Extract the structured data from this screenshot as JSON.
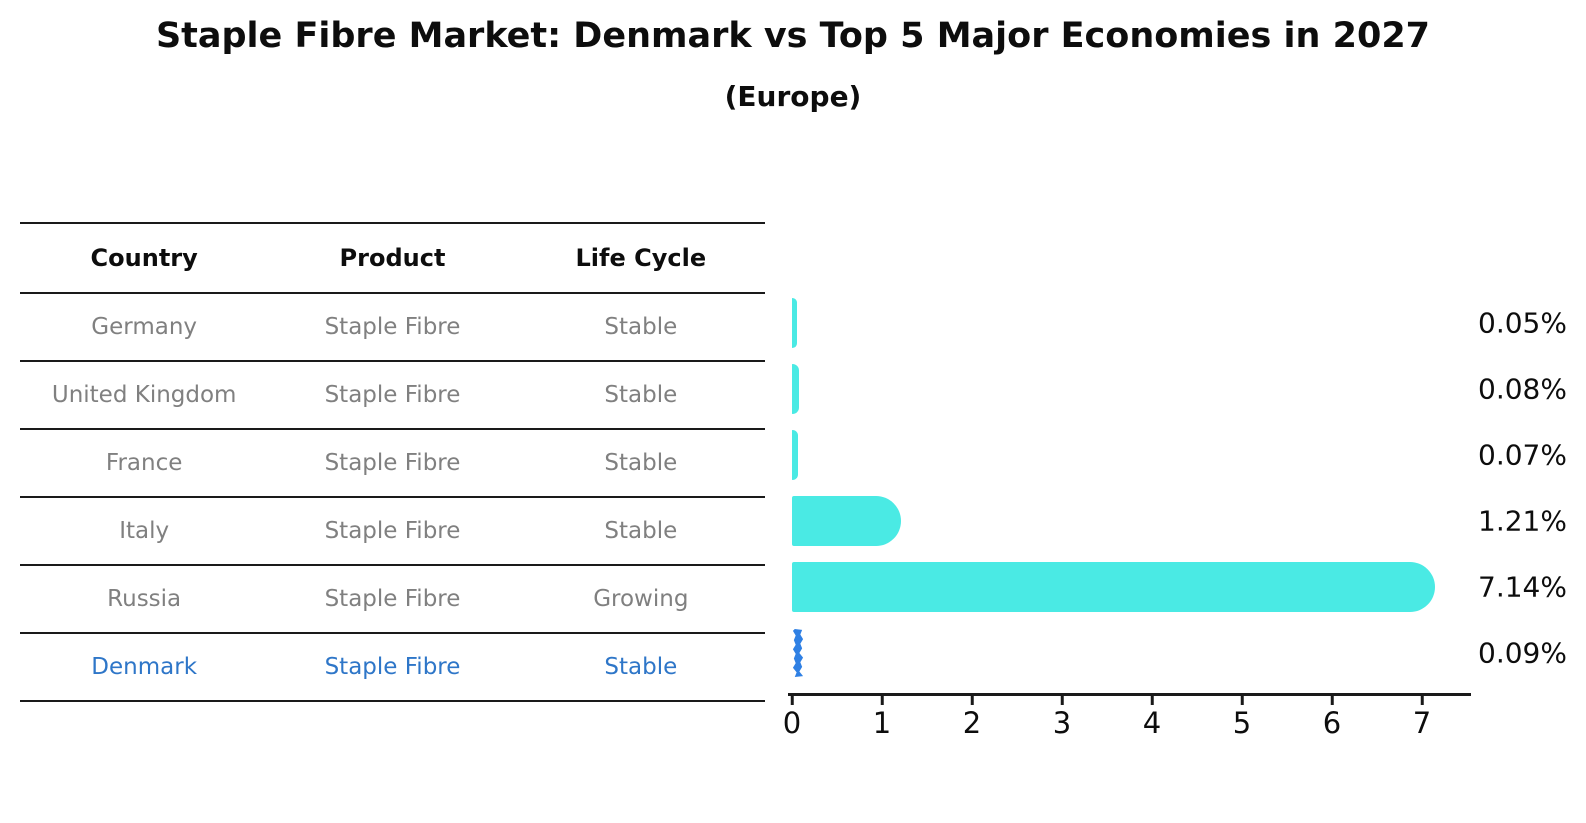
{
  "header": {
    "title": "Staple Fibre Market: Denmark vs Top 5 Major Economies in 2027",
    "subtitle": "(Europe)"
  },
  "table": {
    "headers": [
      "Country",
      "Product",
      "Life Cycle"
    ],
    "rows": [
      {
        "country": "Germany",
        "product": "Staple Fibre",
        "life_cycle": "Stable"
      },
      {
        "country": "United Kingdom",
        "product": "Staple Fibre",
        "life_cycle": "Stable"
      },
      {
        "country": "France",
        "product": "Staple Fibre",
        "life_cycle": "Stable"
      },
      {
        "country": "Italy",
        "product": "Staple Fibre",
        "life_cycle": "Stable"
      },
      {
        "country": "Russia",
        "product": "Staple Fibre",
        "life_cycle": "Growing"
      },
      {
        "country": "Denmark",
        "product": "Staple Fibre",
        "life_cycle": "Stable"
      }
    ]
  },
  "chart_data": {
    "type": "bar",
    "orientation": "horizontal",
    "title": "Staple Fibre Market: Denmark vs Top 5 Major Economies in 2027",
    "subtitle": "(Europe)",
    "categories": [
      "Germany",
      "United Kingdom",
      "France",
      "Italy",
      "Russia",
      "Denmark"
    ],
    "values": [
      0.05,
      0.08,
      0.07,
      1.21,
      7.14,
      0.09
    ],
    "value_labels": [
      "0.05%",
      "0.08%",
      "0.07%",
      "1.21%",
      "7.14%",
      "0.09%"
    ],
    "xlabel": "",
    "ylabel": "",
    "xlim": [
      0,
      7.5
    ],
    "x_ticks": [
      "0",
      "1",
      "2",
      "3",
      "4",
      "5",
      "6",
      "7"
    ],
    "grid": false,
    "legend": false,
    "highlight_category": "Denmark"
  },
  "colors": {
    "bar": "#4AEAE4",
    "highlight_bar": "#2F80E4",
    "highlight_text": "#2E76C8",
    "table_text": "#808080",
    "ink": "#1a1a1a"
  }
}
